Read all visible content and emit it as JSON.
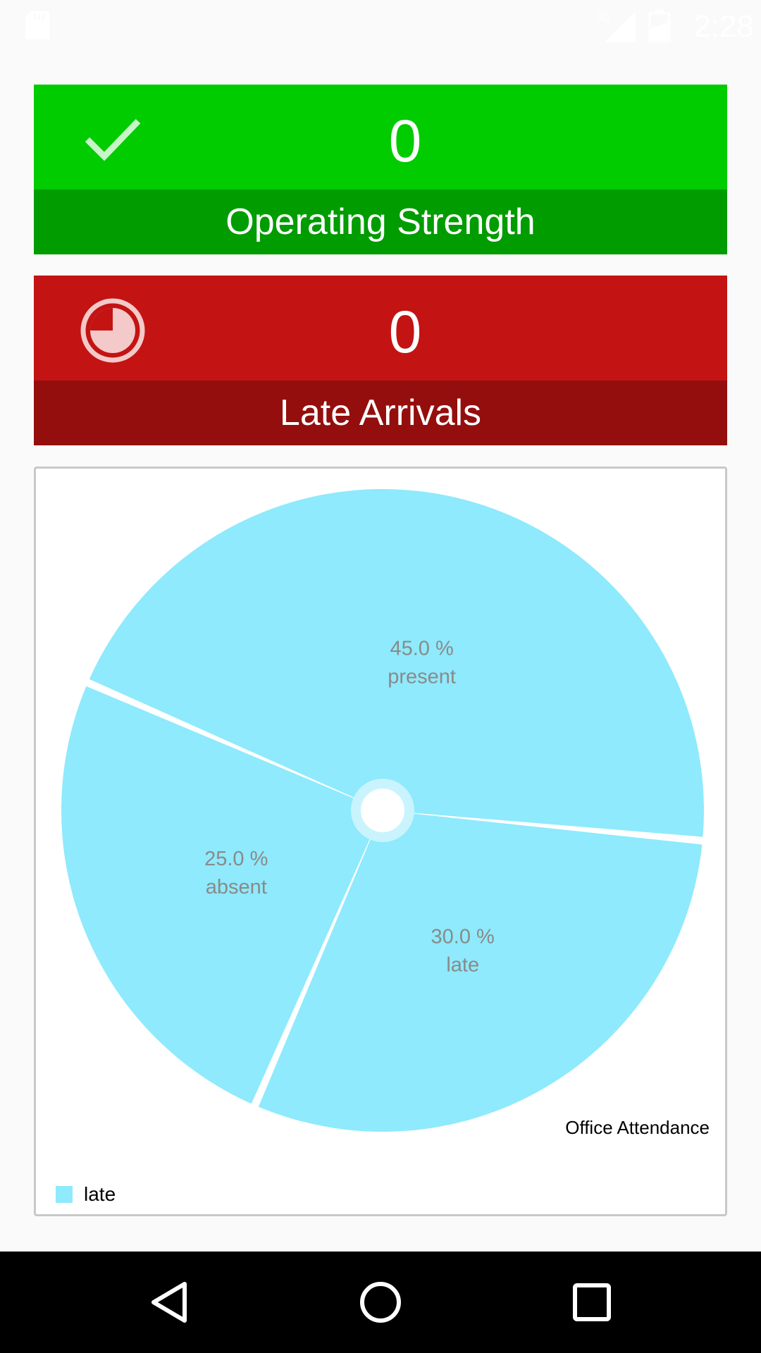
{
  "status_bar": {
    "time": "2:28",
    "network_label": "3G",
    "icons": [
      "sd-card-icon",
      "signal-icon",
      "battery-icon"
    ]
  },
  "cards": {
    "operating": {
      "value": "0",
      "label": "Operating Strength",
      "icon": "checkmark-icon",
      "colors": {
        "top": "#00cc00",
        "bottom": "#009c00"
      }
    },
    "late": {
      "value": "0",
      "label": "Late Arrivals",
      "icon": "clock-pie-icon",
      "colors": {
        "top": "#c41313",
        "bottom": "#940e0e"
      }
    }
  },
  "chart_data": {
    "type": "pie",
    "categories": [
      "present",
      "late",
      "absent"
    ],
    "values": [
      45.0,
      30.0,
      25.0
    ],
    "value_labels": [
      "45.0 %",
      "30.0 %",
      "25.0 %"
    ],
    "color": "#8eeafc",
    "description": "Office Attendance",
    "legend": [
      {
        "label": "late",
        "color": "#8eeafc"
      }
    ],
    "legend_position": "bottom-left"
  },
  "nav_bar": {
    "buttons": [
      "back-icon",
      "home-icon",
      "recents-icon"
    ]
  }
}
